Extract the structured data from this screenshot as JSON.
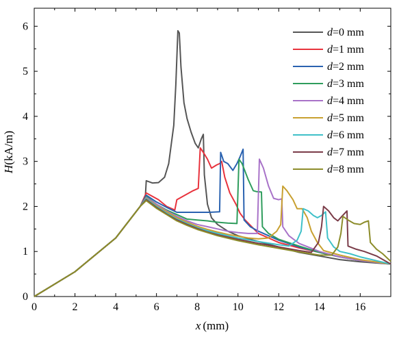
{
  "chart_data": {
    "type": "line",
    "xlabel_var": "x",
    "xlabel_unit": "(mm)",
    "ylabel_var": "H",
    "ylabel_unit": "(kA/m)",
    "xlim": [
      0,
      17.5
    ],
    "ylim": [
      0,
      6.4
    ],
    "xticks": [
      "0",
      "2",
      "4",
      "6",
      "8",
      "10",
      "12",
      "14",
      "16"
    ],
    "yticks": [
      "0",
      "1",
      "2",
      "3",
      "4",
      "5",
      "6"
    ],
    "grid": false,
    "legend_position": "top-right",
    "series": [
      {
        "name": "d=0 mm",
        "var": "d",
        "label": "=0 mm",
        "color": "#555555",
        "points": [
          [
            0,
            0
          ],
          [
            2,
            0.55
          ],
          [
            4,
            1.3
          ],
          [
            5.2,
            2.0
          ],
          [
            5.45,
            2.2
          ],
          [
            5.5,
            2.57
          ],
          [
            5.8,
            2.52
          ],
          [
            6.1,
            2.53
          ],
          [
            6.4,
            2.65
          ],
          [
            6.6,
            2.95
          ],
          [
            6.85,
            3.8
          ],
          [
            6.95,
            4.7
          ],
          [
            7.05,
            5.9
          ],
          [
            7.12,
            5.85
          ],
          [
            7.2,
            5.1
          ],
          [
            7.35,
            4.3
          ],
          [
            7.5,
            3.95
          ],
          [
            7.7,
            3.65
          ],
          [
            7.9,
            3.4
          ],
          [
            8.05,
            3.3
          ],
          [
            8.2,
            3.5
          ],
          [
            8.3,
            3.6
          ],
          [
            8.35,
            2.7
          ],
          [
            8.5,
            2.05
          ],
          [
            8.7,
            1.75
          ],
          [
            9.0,
            1.6
          ],
          [
            9.5,
            1.45
          ],
          [
            10,
            1.35
          ],
          [
            11,
            1.22
          ],
          [
            12,
            1.1
          ],
          [
            13,
            0.98
          ],
          [
            14,
            0.9
          ],
          [
            15,
            0.82
          ],
          [
            16,
            0.77
          ],
          [
            17.5,
            0.72
          ]
        ]
      },
      {
        "name": "d=1 mm",
        "var": "d",
        "label": "=1 mm",
        "color": "#e8323c",
        "points": [
          [
            0,
            0
          ],
          [
            2,
            0.55
          ],
          [
            4,
            1.3
          ],
          [
            5.2,
            2.0
          ],
          [
            5.5,
            2.3
          ],
          [
            6.1,
            2.15
          ],
          [
            6.5,
            2.0
          ],
          [
            6.9,
            1.92
          ],
          [
            7.0,
            2.15
          ],
          [
            7.4,
            2.25
          ],
          [
            7.8,
            2.35
          ],
          [
            8.05,
            2.4
          ],
          [
            8.15,
            3.3
          ],
          [
            8.3,
            3.2
          ],
          [
            8.5,
            3.05
          ],
          [
            8.7,
            2.85
          ],
          [
            8.95,
            2.92
          ],
          [
            9.1,
            2.95
          ],
          [
            9.2,
            3.0
          ],
          [
            9.35,
            2.65
          ],
          [
            9.6,
            2.3
          ],
          [
            9.9,
            2.05
          ],
          [
            10.1,
            1.85
          ],
          [
            10.35,
            1.7
          ],
          [
            11,
            1.4
          ],
          [
            12,
            1.2
          ],
          [
            13,
            1.08
          ],
          [
            14,
            0.98
          ],
          [
            15,
            0.88
          ],
          [
            16,
            0.8
          ],
          [
            17.5,
            0.72
          ]
        ]
      },
      {
        "name": "d=2 mm",
        "var": "d",
        "label": "=2 mm",
        "color": "#2a62b0",
        "points": [
          [
            0,
            0
          ],
          [
            2,
            0.55
          ],
          [
            4,
            1.3
          ],
          [
            5.2,
            2.0
          ],
          [
            5.5,
            2.25
          ],
          [
            6.0,
            2.1
          ],
          [
            6.5,
            1.98
          ],
          [
            7.0,
            1.87
          ],
          [
            7.5,
            1.87
          ],
          [
            8.0,
            1.87
          ],
          [
            8.6,
            1.87
          ],
          [
            9.1,
            1.88
          ],
          [
            9.15,
            3.2
          ],
          [
            9.3,
            3.0
          ],
          [
            9.5,
            2.95
          ],
          [
            9.75,
            2.8
          ],
          [
            9.95,
            2.95
          ],
          [
            10.1,
            3.1
          ],
          [
            10.25,
            3.27
          ],
          [
            10.3,
            1.7
          ],
          [
            10.6,
            1.55
          ],
          [
            11,
            1.45
          ],
          [
            12,
            1.25
          ],
          [
            13,
            1.1
          ],
          [
            14,
            0.98
          ],
          [
            15,
            0.88
          ],
          [
            16,
            0.8
          ],
          [
            17.5,
            0.72
          ]
        ]
      },
      {
        "name": "d=3 mm",
        "var": "d",
        "label": "=3 mm",
        "color": "#2e9c5c",
        "points": [
          [
            0,
            0
          ],
          [
            2,
            0.55
          ],
          [
            4,
            1.3
          ],
          [
            5.2,
            2.0
          ],
          [
            5.5,
            2.22
          ],
          [
            6.0,
            2.05
          ],
          [
            6.5,
            1.92
          ],
          [
            7.0,
            1.82
          ],
          [
            7.5,
            1.72
          ],
          [
            8.0,
            1.7
          ],
          [
            8.5,
            1.68
          ],
          [
            9.0,
            1.65
          ],
          [
            9.5,
            1.63
          ],
          [
            9.95,
            1.62
          ],
          [
            10.05,
            3.05
          ],
          [
            10.2,
            2.95
          ],
          [
            10.5,
            2.6
          ],
          [
            10.75,
            2.35
          ],
          [
            10.9,
            2.33
          ],
          [
            11.15,
            2.32
          ],
          [
            11.2,
            1.55
          ],
          [
            11.5,
            1.4
          ],
          [
            12,
            1.27
          ],
          [
            13,
            1.12
          ],
          [
            14,
            0.98
          ],
          [
            15,
            0.88
          ],
          [
            16,
            0.8
          ],
          [
            17.5,
            0.72
          ]
        ]
      },
      {
        "name": "d=4 mm",
        "var": "d",
        "label": "=4 mm",
        "color": "#a872c8",
        "points": [
          [
            0,
            0
          ],
          [
            2,
            0.55
          ],
          [
            4,
            1.3
          ],
          [
            5.2,
            2.0
          ],
          [
            5.5,
            2.2
          ],
          [
            6.0,
            2.05
          ],
          [
            6.5,
            1.9
          ],
          [
            7.0,
            1.78
          ],
          [
            7.5,
            1.68
          ],
          [
            8.0,
            1.6
          ],
          [
            8.5,
            1.55
          ],
          [
            9.0,
            1.5
          ],
          [
            9.5,
            1.45
          ],
          [
            10,
            1.42
          ],
          [
            10.5,
            1.4
          ],
          [
            10.95,
            1.4
          ],
          [
            11.05,
            3.05
          ],
          [
            11.25,
            2.85
          ],
          [
            11.5,
            2.45
          ],
          [
            11.75,
            2.18
          ],
          [
            12,
            2.15
          ],
          [
            12.15,
            2.17
          ],
          [
            12.2,
            1.55
          ],
          [
            12.5,
            1.35
          ],
          [
            13,
            1.18
          ],
          [
            14,
            1.0
          ],
          [
            15,
            0.88
          ],
          [
            16,
            0.8
          ],
          [
            17.5,
            0.72
          ]
        ]
      },
      {
        "name": "d=5 mm",
        "var": "d",
        "label": "=5 mm",
        "color": "#c8a030",
        "points": [
          [
            0,
            0
          ],
          [
            2,
            0.55
          ],
          [
            4,
            1.3
          ],
          [
            5.2,
            2.0
          ],
          [
            5.5,
            2.18
          ],
          [
            6.0,
            2.02
          ],
          [
            6.5,
            1.88
          ],
          [
            7.0,
            1.75
          ],
          [
            7.5,
            1.65
          ],
          [
            8.0,
            1.56
          ],
          [
            8.5,
            1.49
          ],
          [
            9.0,
            1.43
          ],
          [
            9.5,
            1.38
          ],
          [
            10,
            1.34
          ],
          [
            10.5,
            1.3
          ],
          [
            11,
            1.28
          ],
          [
            11.5,
            1.3
          ],
          [
            11.9,
            1.45
          ],
          [
            12.1,
            1.6
          ],
          [
            12.2,
            2.45
          ],
          [
            12.4,
            2.35
          ],
          [
            12.7,
            2.15
          ],
          [
            12.9,
            1.95
          ],
          [
            13.15,
            1.95
          ],
          [
            13.4,
            1.75
          ],
          [
            13.6,
            1.45
          ],
          [
            13.9,
            1.2
          ],
          [
            14.2,
            1.02
          ],
          [
            15,
            0.92
          ],
          [
            16,
            0.82
          ],
          [
            17.5,
            0.72
          ]
        ]
      },
      {
        "name": "d=6 mm",
        "var": "d",
        "label": "=6 mm",
        "color": "#3ec0c8",
        "points": [
          [
            0,
            0
          ],
          [
            2,
            0.55
          ],
          [
            4,
            1.3
          ],
          [
            5.2,
            2.0
          ],
          [
            5.5,
            2.17
          ],
          [
            6.0,
            2.0
          ],
          [
            6.5,
            1.85
          ],
          [
            7.0,
            1.72
          ],
          [
            7.5,
            1.62
          ],
          [
            8.0,
            1.53
          ],
          [
            8.5,
            1.46
          ],
          [
            9.0,
            1.4
          ],
          [
            9.5,
            1.35
          ],
          [
            10,
            1.3
          ],
          [
            11,
            1.22
          ],
          [
            12,
            1.15
          ],
          [
            12.5,
            1.12
          ],
          [
            12.9,
            1.25
          ],
          [
            13.1,
            1.45
          ],
          [
            13.2,
            1.95
          ],
          [
            13.45,
            1.9
          ],
          [
            13.7,
            1.8
          ],
          [
            13.9,
            1.75
          ],
          [
            14.1,
            1.8
          ],
          [
            14.3,
            1.88
          ],
          [
            14.4,
            1.3
          ],
          [
            14.7,
            1.1
          ],
          [
            15,
            1.0
          ],
          [
            15.5,
            0.95
          ],
          [
            16,
            0.88
          ],
          [
            17.5,
            0.72
          ]
        ]
      },
      {
        "name": "d=7 mm",
        "var": "d",
        "label": "=7 mm",
        "color": "#7a3b48",
        "points": [
          [
            0,
            0
          ],
          [
            2,
            0.55
          ],
          [
            4,
            1.3
          ],
          [
            5.2,
            2.0
          ],
          [
            5.5,
            2.15
          ],
          [
            6.0,
            1.98
          ],
          [
            6.5,
            1.83
          ],
          [
            7.0,
            1.7
          ],
          [
            7.5,
            1.6
          ],
          [
            8.0,
            1.51
          ],
          [
            8.5,
            1.43
          ],
          [
            9.0,
            1.37
          ],
          [
            10,
            1.27
          ],
          [
            11,
            1.18
          ],
          [
            12,
            1.1
          ],
          [
            13,
            1.02
          ],
          [
            13.6,
            0.98
          ],
          [
            13.95,
            1.2
          ],
          [
            14.1,
            1.55
          ],
          [
            14.2,
            2.0
          ],
          [
            14.45,
            1.9
          ],
          [
            14.7,
            1.75
          ],
          [
            14.9,
            1.68
          ],
          [
            15.1,
            1.78
          ],
          [
            15.35,
            1.9
          ],
          [
            15.4,
            1.12
          ],
          [
            15.8,
            1.05
          ],
          [
            16.2,
            1.0
          ],
          [
            16.8,
            0.9
          ],
          [
            17.5,
            0.72
          ]
        ]
      },
      {
        "name": "d=8 mm",
        "var": "d",
        "label": "=8 mm",
        "color": "#8c8c2a",
        "points": [
          [
            0,
            0
          ],
          [
            2,
            0.55
          ],
          [
            4,
            1.3
          ],
          [
            5.2,
            2.0
          ],
          [
            5.5,
            2.13
          ],
          [
            6.0,
            1.96
          ],
          [
            6.5,
            1.82
          ],
          [
            7.0,
            1.68
          ],
          [
            7.5,
            1.58
          ],
          [
            8.0,
            1.49
          ],
          [
            9.0,
            1.35
          ],
          [
            10,
            1.24
          ],
          [
            11,
            1.15
          ],
          [
            12,
            1.07
          ],
          [
            13,
            0.99
          ],
          [
            14,
            0.92
          ],
          [
            14.6,
            0.92
          ],
          [
            14.9,
            1.1
          ],
          [
            15.05,
            1.4
          ],
          [
            15.15,
            1.78
          ],
          [
            15.4,
            1.7
          ],
          [
            15.7,
            1.62
          ],
          [
            16.0,
            1.6
          ],
          [
            16.2,
            1.65
          ],
          [
            16.4,
            1.68
          ],
          [
            16.5,
            1.2
          ],
          [
            16.8,
            1.05
          ],
          [
            17.1,
            0.95
          ],
          [
            17.5,
            0.78
          ]
        ]
      }
    ]
  }
}
